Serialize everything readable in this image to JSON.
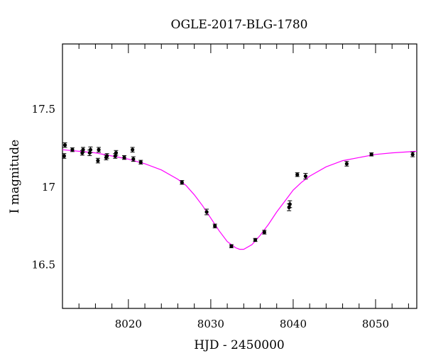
{
  "chart_data": {
    "type": "scatter",
    "title": "OGLE-2017-BLG-1780",
    "xlabel": "HJD - 2450000",
    "ylabel": "I magnitude",
    "xlim": [
      8012,
      8055
    ],
    "ylim": [
      17.92,
      16.22
    ],
    "y_inverted": true,
    "x_ticks": [
      8020,
      8030,
      8040,
      8050
    ],
    "x_tick_labels": [
      "8020",
      "8030",
      "8040",
      "8050"
    ],
    "y_ticks": [
      16.5,
      17,
      17.5
    ],
    "y_tick_labels": [
      "16.5",
      "17",
      "17.5"
    ],
    "legend": "none",
    "grid": false,
    "series": [
      {
        "kind": "points",
        "color": "#000000",
        "x": [
          8012.2,
          8012.3,
          8013.2,
          8014.4,
          8014.5,
          8015.3,
          8015.4,
          8016.3,
          8016.4,
          8017.3,
          8017.4,
          8018.4,
          8018.5,
          8019.5,
          8020.5,
          8020.6,
          8021.5,
          8026.5,
          8029.5,
          8030.5,
          8032.5,
          8035.4,
          8036.5,
          8039.5,
          8039.6,
          8040.5,
          8041.5,
          8046.5,
          8049.5,
          8054.5
        ],
        "y": [
          17.2,
          17.27,
          17.24,
          17.22,
          17.24,
          17.22,
          17.24,
          17.17,
          17.24,
          17.19,
          17.2,
          17.2,
          17.22,
          17.19,
          17.24,
          17.18,
          17.16,
          17.03,
          16.84,
          16.75,
          16.62,
          16.66,
          16.71,
          16.87,
          16.89,
          17.08,
          17.07,
          17.15,
          17.21,
          17.21
        ],
        "yerr": [
          0.015,
          0.015,
          0.012,
          0.015,
          0.015,
          0.018,
          0.018,
          0.015,
          0.015,
          0.015,
          0.015,
          0.015,
          0.015,
          0.012,
          0.015,
          0.015,
          0.012,
          0.012,
          0.018,
          0.012,
          0.01,
          0.01,
          0.012,
          0.022,
          0.022,
          0.012,
          0.018,
          0.015,
          0.01,
          0.015
        ]
      },
      {
        "kind": "model-curve",
        "color": "#ff00ff",
        "x": [
          8012,
          8014,
          8016,
          8018,
          8020,
          8022,
          8024,
          8026,
          8027,
          8028,
          8029,
          8030,
          8031,
          8032,
          8033,
          8033.5,
          8034,
          8035,
          8036,
          8037,
          8038,
          8039,
          8040,
          8041,
          8042,
          8044,
          8046,
          8048,
          8050,
          8052,
          8055
        ],
        "y": [
          17.24,
          17.23,
          17.22,
          17.2,
          17.18,
          17.15,
          17.11,
          17.05,
          17.01,
          16.95,
          16.88,
          16.8,
          16.72,
          16.65,
          16.61,
          16.6,
          16.6,
          16.63,
          16.69,
          16.76,
          16.84,
          16.91,
          16.98,
          17.03,
          17.07,
          17.13,
          17.17,
          17.19,
          17.21,
          17.22,
          17.23
        ]
      }
    ]
  }
}
